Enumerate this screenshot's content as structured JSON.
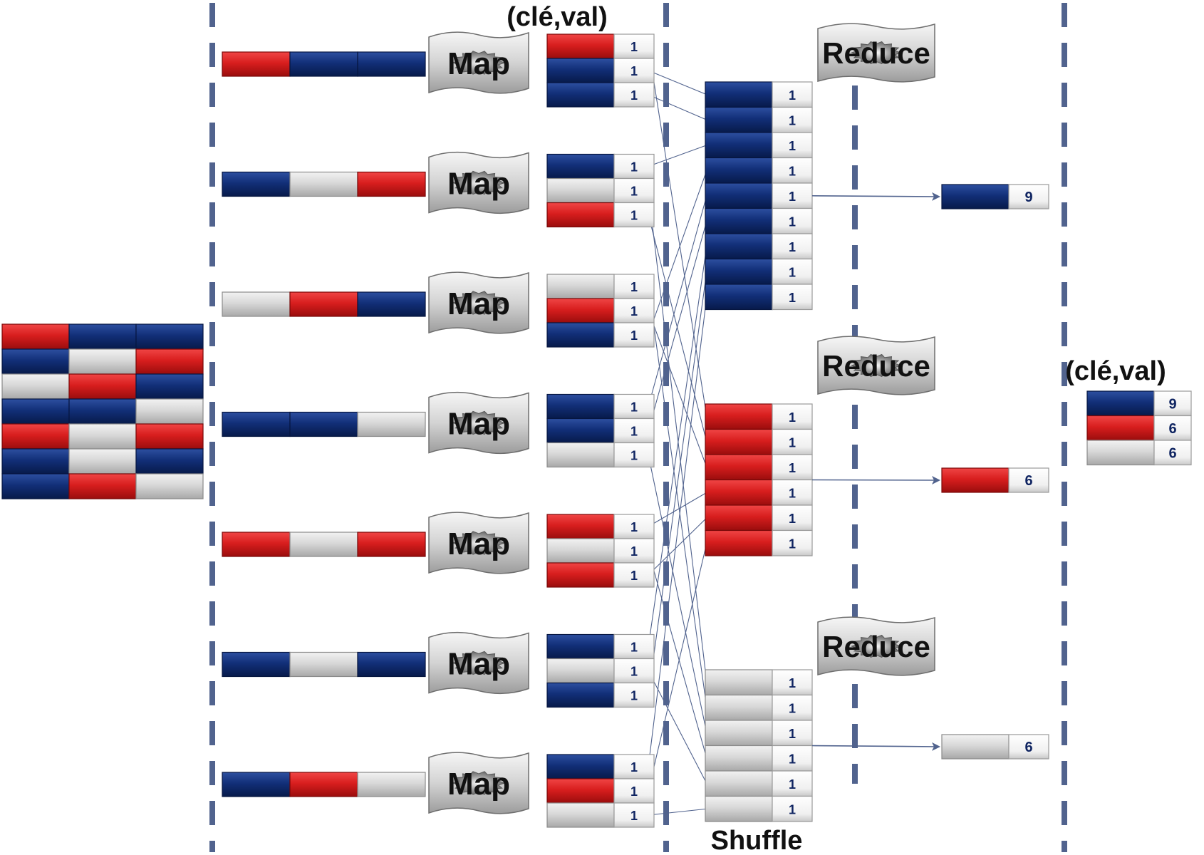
{
  "colors": {
    "blue": "#102f78",
    "red": "#d81e1e",
    "gray": "#d6d6d6",
    "divider": "#51638e",
    "line": "#51638e"
  },
  "labels": {
    "kv_top": "(clé,val)",
    "kv_result": "(clé,val)",
    "map": "Map",
    "reduce": "Reduce",
    "shuffle": "Shuffle",
    "one": "1"
  },
  "input_grid": [
    [
      "red",
      "blue",
      "blue"
    ],
    [
      "blue",
      "gray",
      "red"
    ],
    [
      "gray",
      "red",
      "blue"
    ],
    [
      "blue",
      "blue",
      "gray"
    ],
    [
      "red",
      "gray",
      "red"
    ],
    [
      "blue",
      "gray",
      "blue"
    ],
    [
      "blue",
      "red",
      "gray"
    ]
  ],
  "splits": [
    [
      "red",
      "blue",
      "blue"
    ],
    [
      "blue",
      "gray",
      "red"
    ],
    [
      "gray",
      "red",
      "blue"
    ],
    [
      "blue",
      "blue",
      "gray"
    ],
    [
      "red",
      "gray",
      "red"
    ],
    [
      "blue",
      "gray",
      "blue"
    ],
    [
      "blue",
      "red",
      "gray"
    ]
  ],
  "shuffle_groups": [
    {
      "key": "blue",
      "count": 9
    },
    {
      "key": "red",
      "count": 6
    },
    {
      "key": "gray",
      "count": 6
    }
  ],
  "reduce_outputs": [
    {
      "key": "blue",
      "value": "9"
    },
    {
      "key": "red",
      "value": "6"
    },
    {
      "key": "gray",
      "value": "6"
    }
  ],
  "result": [
    {
      "key": "blue",
      "value": "9"
    },
    {
      "key": "red",
      "value": "6"
    },
    {
      "key": "gray",
      "value": "6"
    }
  ]
}
